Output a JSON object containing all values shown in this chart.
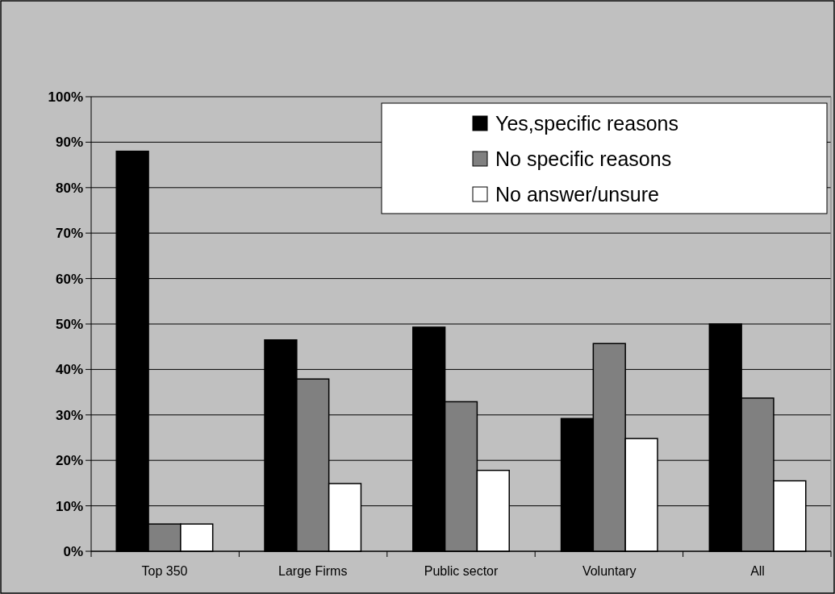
{
  "chart_data": {
    "type": "bar",
    "categories": [
      "Top 350",
      "Large Firms",
      "Public sector",
      "Voluntary",
      "All"
    ],
    "series": [
      {
        "name": "Yes,specific reasons",
        "color": "#000000",
        "values": [
          88,
          46.5,
          49.3,
          29.2,
          50
        ]
      },
      {
        "name": "No specific reasons",
        "color": "#808080",
        "values": [
          6,
          37.9,
          32.9,
          45.7,
          33.7
        ]
      },
      {
        "name": "No answer/unsure",
        "color": "#ffffff",
        "values": [
          6,
          14.9,
          17.8,
          24.8,
          15.5
        ]
      }
    ],
    "ylim": [
      0,
      100
    ],
    "yticks": [
      {
        "value": 0,
        "label": "0%"
      },
      {
        "value": 10,
        "label": "10%"
      },
      {
        "value": 20,
        "label": "20%"
      },
      {
        "value": 30,
        "label": "30%"
      },
      {
        "value": 40,
        "label": "40%"
      },
      {
        "value": 50,
        "label": "50%"
      },
      {
        "value": 60,
        "label": "60%"
      },
      {
        "value": 70,
        "label": "70%"
      },
      {
        "value": 80,
        "label": "80%"
      },
      {
        "value": 90,
        "label": "90%"
      },
      {
        "value": 100,
        "label": "100%"
      }
    ],
    "grid": "y",
    "legend": "top right"
  }
}
